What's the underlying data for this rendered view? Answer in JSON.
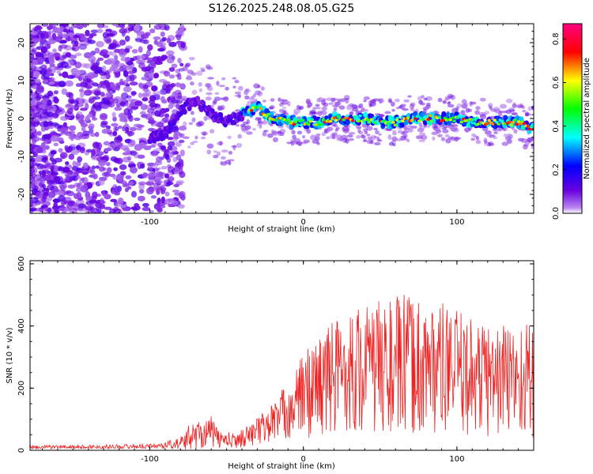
{
  "title": "S126.2025.248.08.05.G25",
  "colors": {
    "snr_line": "#ee2222",
    "spectrogram_low": "#8a2be2",
    "background": "#ffffff"
  },
  "chart_data": [
    {
      "type": "heatmap",
      "name": "spectrogram",
      "xlabel": "Height of straight line (km)",
      "ylabel": "Frequency (Hz)",
      "xlim": [
        -178,
        150
      ],
      "ylim": [
        -25,
        25
      ],
      "xticks": [
        -100,
        0,
        100
      ],
      "yticks": [
        -20,
        -10,
        0,
        10,
        20
      ],
      "colorbar": {
        "label": "Normalized spectral amplitude",
        "range": [
          0.0,
          0.87
        ],
        "ticks": [
          0.0,
          0.2,
          0.4,
          0.6,
          0.8
        ],
        "colormap": "rainbow (purple-blue-cyan-green-yellow-red-magenta)"
      },
      "trace": {
        "description": "Doppler frequency ridge vs. height",
        "x": [
          -100,
          -90,
          -80,
          -70,
          -60,
          -50,
          -40,
          -30,
          -20,
          -10,
          0,
          10,
          20,
          30,
          40,
          50,
          60,
          70,
          80,
          90,
          100,
          110,
          120,
          130,
          140,
          150
        ],
        "y": [
          -5,
          -4,
          2,
          5,
          1,
          -1,
          1,
          3,
          0,
          -1,
          -1,
          -1,
          0,
          0,
          0,
          -1,
          -1,
          0,
          0,
          0,
          0,
          -1,
          -1,
          -1,
          -1,
          -3
        ]
      }
    },
    {
      "type": "line",
      "name": "snr",
      "xlabel": "Height of straight line (km)",
      "ylabel": "SNR (10 * v/v)",
      "xlim": [
        -178,
        150
      ],
      "ylim": [
        0,
        610
      ],
      "xticks": [
        -100,
        0,
        100
      ],
      "yticks": [
        0,
        200,
        400,
        600
      ],
      "envelope": {
        "x": [
          -178,
          -120,
          -95,
          -80,
          -75,
          -70,
          -60,
          -55,
          -45,
          -35,
          -25,
          -15,
          -5,
          0,
          10,
          20,
          30,
          40,
          50,
          60,
          70,
          80,
          90,
          100,
          110,
          120,
          130,
          140,
          150
        ],
        "median": [
          10,
          12,
          14,
          22,
          40,
          50,
          60,
          35,
          30,
          50,
          75,
          110,
          150,
          180,
          210,
          240,
          260,
          260,
          270,
          270,
          270,
          270,
          265,
          250,
          240,
          230,
          230,
          230,
          230
        ],
        "spread": [
          6,
          7,
          8,
          20,
          40,
          45,
          50,
          30,
          25,
          35,
          55,
          80,
          110,
          140,
          170,
          190,
          200,
          210,
          220,
          230,
          230,
          220,
          210,
          200,
          190,
          190,
          190,
          190,
          190
        ]
      }
    }
  ]
}
